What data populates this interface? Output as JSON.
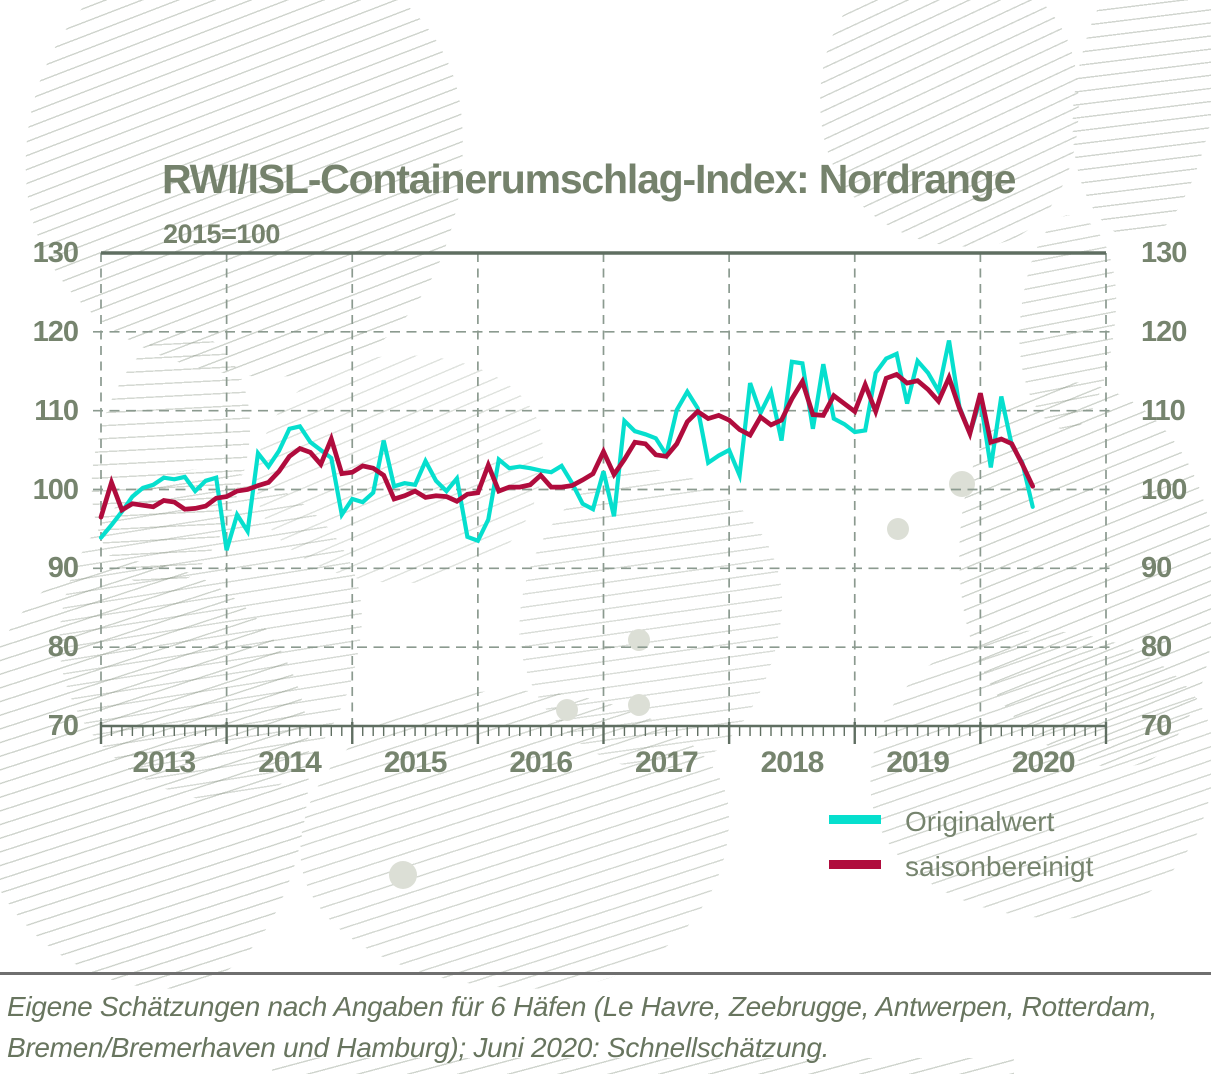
{
  "title": "RWI/ISL-Containerumschlag-Index: Nordrange",
  "subtitle": "2015=100",
  "footer": {
    "line1": "Eigene Schätzungen nach Angaben für 6 Häfen (Le Havre, Zeebrugge, Antwerpen, Rotterdam,",
    "line2": "Bremen/Bremerhaven und Hamburg); Juni 2020: Schnellschätzung."
  },
  "colors": {
    "original": "#06dfce",
    "seasonal": "#b00c3d",
    "text": "#75826c",
    "axis": "#5f6e61",
    "grid": "#8b9a8f",
    "map_dot": "#dcdfd6",
    "divider": "#6f6f6f"
  },
  "chart_data": {
    "type": "line",
    "title": "RWI/ISL-Containerumschlag-Index: Nordrange",
    "subtitle": "2015=100",
    "x_unit": "month",
    "x_start": "2013-01",
    "x_end": "2020-06",
    "x_tick_labels": [
      "2013",
      "2014",
      "2015",
      "2016",
      "2017",
      "2018",
      "2019",
      "2020"
    ],
    "ylim": [
      70,
      130
    ],
    "y_ticks": [
      130,
      120,
      110,
      100,
      90,
      80,
      70
    ],
    "grid": "dashed",
    "legend_position": "bottom-right",
    "series": [
      {
        "name": "Originalwert",
        "color": "#06dfce",
        "values": [
          93.9,
          95.5,
          97.2,
          99.1,
          100.2,
          100.6,
          101.5,
          101.3,
          101.6,
          99.8,
          101.1,
          101.5,
          92.3,
          96.8,
          94.7,
          104.6,
          102.9,
          104.9,
          107.7,
          108.0,
          106.0,
          105.0,
          104.0,
          96.8,
          98.8,
          98.4,
          99.6,
          106.2,
          100.4,
          100.8,
          100.6,
          103.6,
          101.1,
          99.8,
          101.4,
          94.0,
          93.5,
          96.2,
          103.8,
          102.7,
          102.9,
          102.7,
          102.4,
          102.2,
          103.0,
          100.8,
          98.2,
          97.5,
          102.3,
          96.6,
          108.7,
          107.4,
          107.0,
          106.5,
          104.4,
          110.1,
          112.4,
          110.3,
          103.4,
          104.3,
          105.0,
          101.8,
          113.5,
          109.7,
          112.4,
          106.2,
          116.2,
          116.0,
          107.7,
          115.9,
          109.0,
          108.3,
          107.3,
          107.5,
          114.8,
          116.6,
          117.2,
          110.9,
          116.3,
          114.8,
          112.5,
          118.9,
          110.5,
          107.1,
          111.4,
          102.8,
          111.8,
          105.6,
          103.4,
          97.8
        ]
      },
      {
        "name": "saisonbereinigt",
        "color": "#b00c3d",
        "values": [
          96.5,
          100.9,
          97.4,
          98.2,
          98.0,
          97.8,
          98.6,
          98.4,
          97.5,
          97.6,
          97.9,
          98.9,
          99.1,
          99.8,
          100.0,
          100.5,
          100.9,
          102.3,
          104.2,
          105.2,
          104.7,
          103.2,
          106.4,
          102.0,
          102.2,
          103.0,
          102.7,
          101.8,
          98.8,
          99.2,
          99.8,
          99.0,
          99.2,
          99.1,
          98.5,
          99.4,
          99.6,
          103.1,
          99.8,
          100.3,
          100.3,
          100.6,
          101.8,
          100.3,
          100.3,
          100.5,
          101.2,
          102.0,
          104.8,
          101.9,
          103.8,
          106.0,
          105.8,
          104.4,
          104.2,
          105.8,
          108.6,
          109.9,
          109.0,
          109.4,
          108.8,
          107.6,
          106.9,
          109.2,
          108.2,
          108.8,
          111.5,
          113.7,
          109.5,
          109.4,
          111.9,
          110.9,
          109.9,
          113.3,
          109.9,
          114.1,
          114.6,
          113.5,
          113.8,
          112.7,
          111.2,
          114.2,
          110.3,
          107.1,
          112.2,
          106.0,
          106.4,
          105.8,
          103.2,
          100.4
        ]
      }
    ],
    "source_note": "Eigene Schätzungen nach Angaben für 6 Häfen (Le Havre, Zeebrugge, Antwerpen, Rotterdam, Bremen/Bremerhaven und Hamburg); Juni 2020: Schnellschätzung."
  }
}
